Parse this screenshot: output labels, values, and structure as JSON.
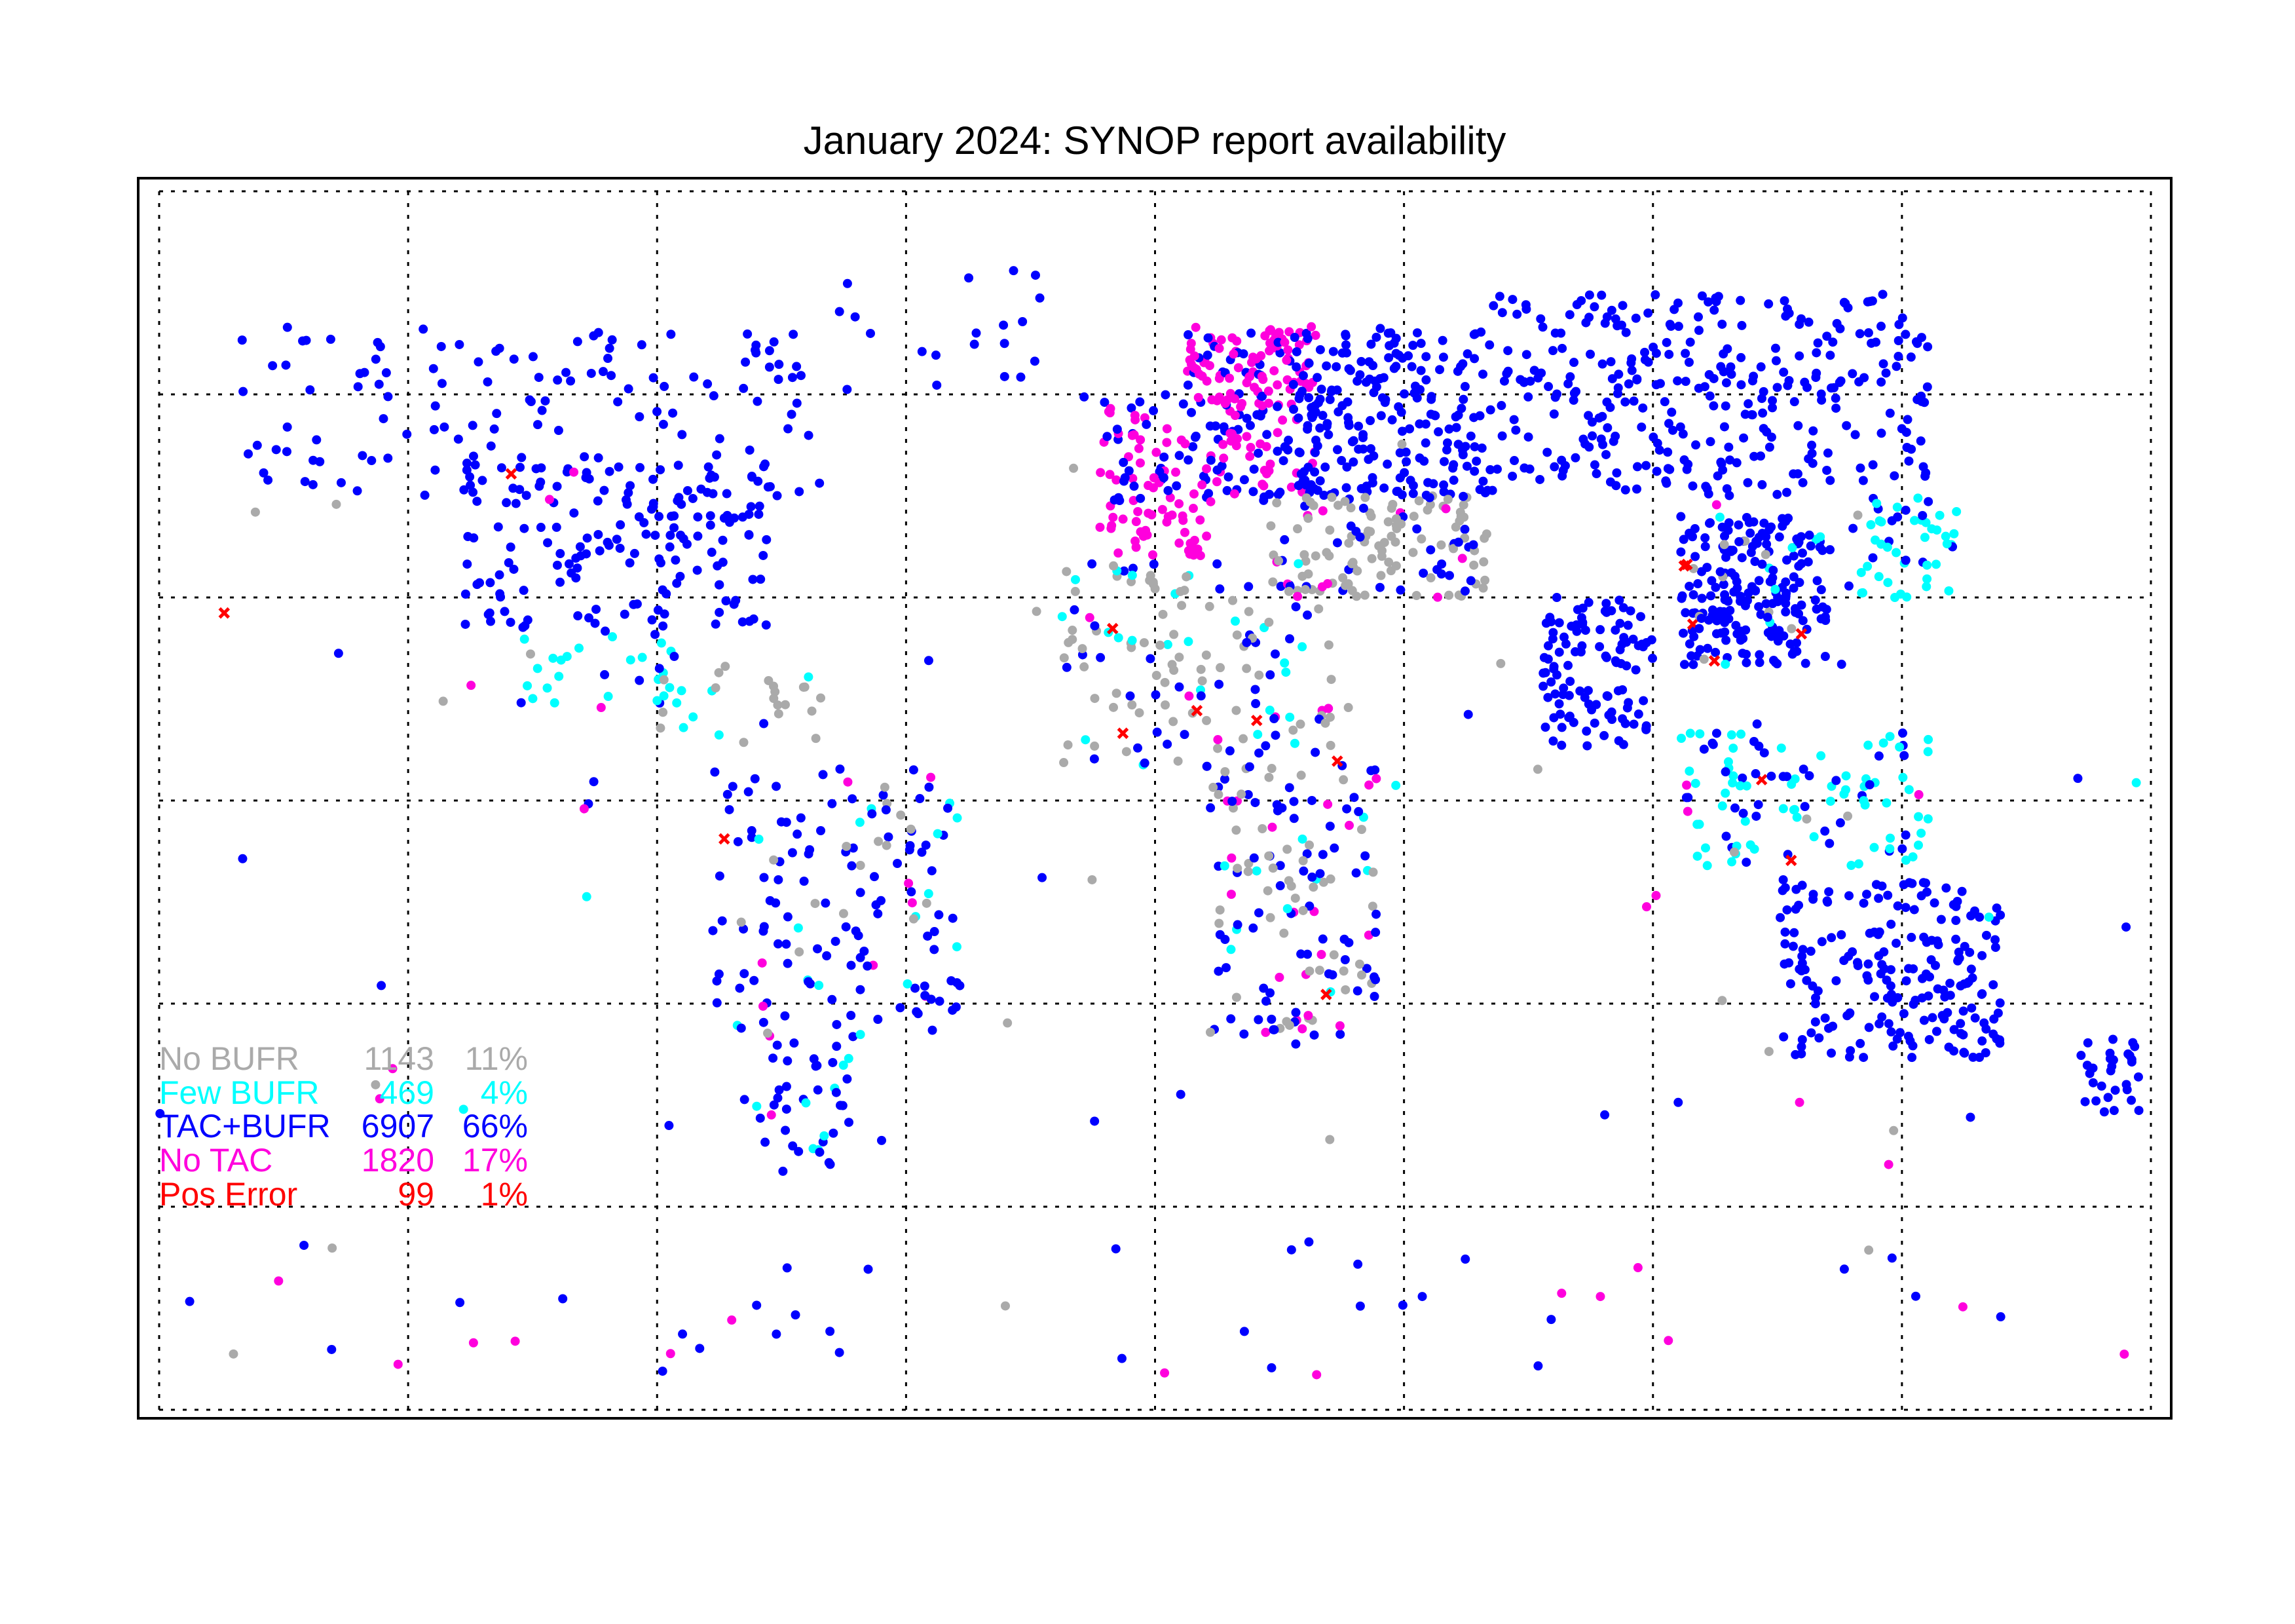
{
  "chart_data": {
    "type": "scatter",
    "title": "January 2024: SYNOP report availability",
    "map": "world, equirectangular",
    "xlim": [
      -180,
      180
    ],
    "ylim": [
      -90,
      90
    ],
    "grid": true,
    "grid_lon_step": 45,
    "grid_lat_step": 30,
    "legend_placement": "bottom-left",
    "categories": [
      {
        "name": "No BUFR",
        "count": "1143",
        "percent": "11%",
        "color": "#aaaaaa"
      },
      {
        "name": "Few BUFR",
        "count": "469",
        "percent": "4%",
        "color": "#00ffff"
      },
      {
        "name": "TAC+BUFR",
        "count": "6907",
        "percent": "66%",
        "color": "#0000ff"
      },
      {
        "name": "No TAC",
        "count": "1820",
        "percent": "17%",
        "color": "#ff00dd"
      },
      {
        "name": "Pos Error",
        "count": "99",
        "percent": "1%",
        "color": "#ff0000"
      }
    ]
  }
}
